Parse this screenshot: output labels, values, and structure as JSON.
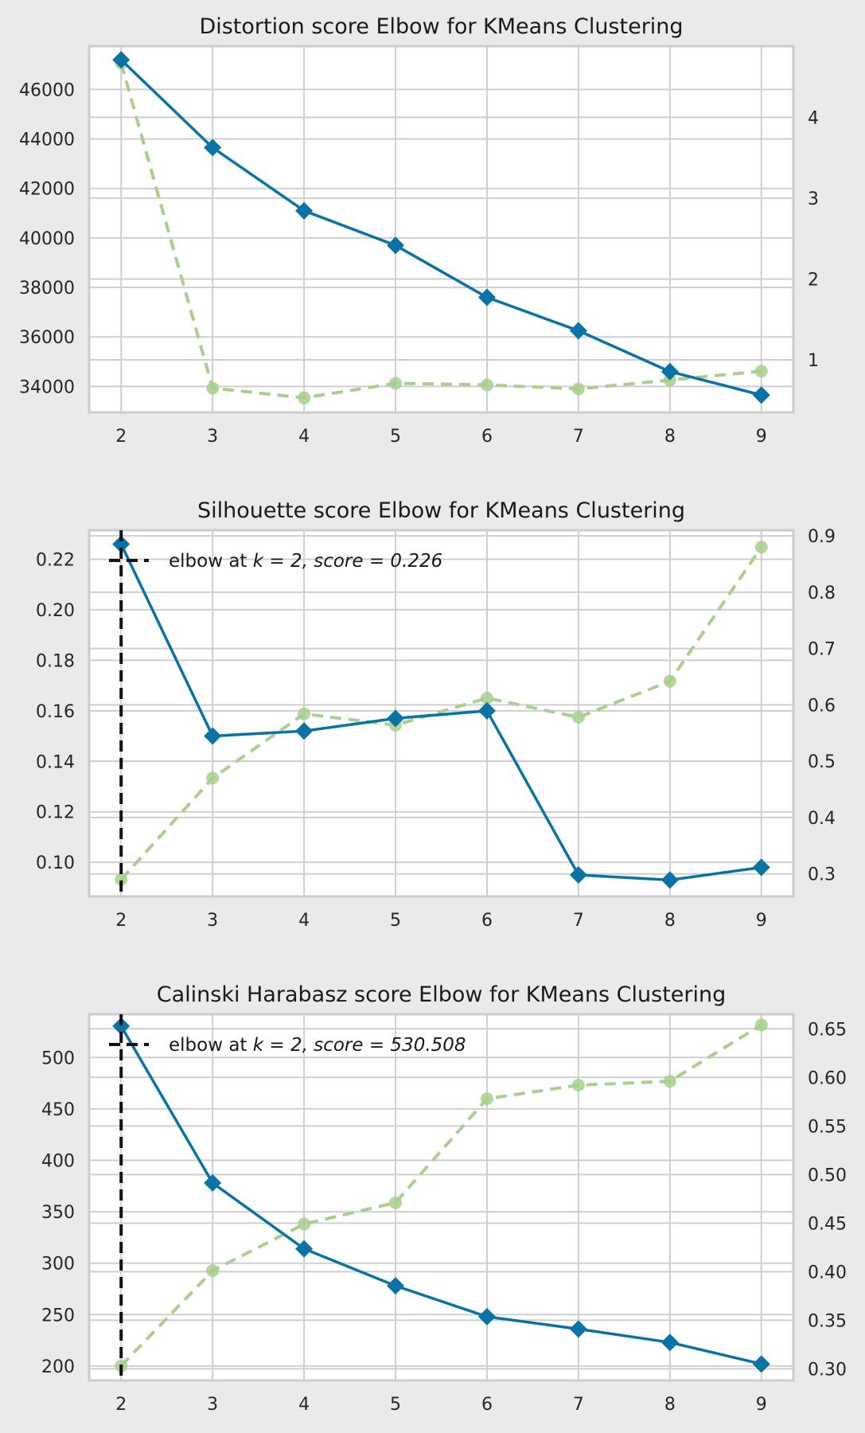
{
  "chart_data": [
    {
      "type": "line",
      "title": "Distortion score Elbow for KMeans Clustering",
      "x": [
        2,
        3,
        4,
        5,
        6,
        7,
        8,
        9
      ],
      "xlim": [
        1.65,
        9.35
      ],
      "ylim": [
        32950,
        47750
      ],
      "y2lim": [
        0.35,
        4.88
      ],
      "yticks": [
        34000,
        36000,
        38000,
        40000,
        42000,
        44000,
        46000
      ],
      "y2ticks": [
        1,
        2,
        3,
        4
      ],
      "y2tick_format": "int",
      "series": [
        {
          "axis": "left",
          "values": [
            47200,
            43650,
            41100,
            39700,
            37600,
            36250,
            34600,
            33650
          ]
        },
        {
          "axis": "right",
          "values": [
            4.67,
            0.65,
            0.53,
            0.71,
            0.69,
            0.64,
            0.75,
            0.86
          ]
        }
      ],
      "elbow": null,
      "grid": true
    },
    {
      "type": "line",
      "title": "Silhouette score Elbow for KMeans Clustering",
      "x": [
        2,
        3,
        4,
        5,
        6,
        7,
        8,
        9
      ],
      "xlim": [
        1.65,
        9.35
      ],
      "ylim": [
        0.0865,
        0.2315
      ],
      "y2lim": [
        0.26,
        0.91
      ],
      "yticks": [
        0.1,
        0.12,
        0.14,
        0.16,
        0.18,
        0.2,
        0.22
      ],
      "y2ticks": [
        0.3,
        0.4,
        0.5,
        0.6,
        0.7,
        0.8,
        0.9
      ],
      "y2tick_format": "1",
      "series": [
        {
          "axis": "left",
          "values": [
            0.226,
            0.15,
            0.152,
            0.157,
            0.16,
            0.095,
            0.093,
            0.098
          ]
        },
        {
          "axis": "right",
          "values": [
            0.29,
            0.47,
            0.584,
            0.564,
            0.612,
            0.578,
            0.642,
            0.88
          ]
        }
      ],
      "elbow": {
        "k": 2,
        "label_prefix": "elbow at ",
        "label_math": "k = 2, score = 0.226"
      },
      "grid": true
    },
    {
      "type": "line",
      "title": "Calinski Harabasz score Elbow for KMeans Clustering",
      "x": [
        2,
        3,
        4,
        5,
        6,
        7,
        8,
        9
      ],
      "xlim": [
        1.65,
        9.35
      ],
      "ylim": [
        186,
        542
      ],
      "y2lim": [
        0.288,
        0.665
      ],
      "yticks": [
        200,
        250,
        300,
        350,
        400,
        450,
        500
      ],
      "y2ticks": [
        0.3,
        0.35,
        0.4,
        0.45,
        0.5,
        0.55,
        0.6,
        0.65
      ],
      "y2tick_format": "2",
      "series": [
        {
          "axis": "left",
          "values": [
            530.508,
            378,
            314,
            278,
            248,
            236,
            223,
            202
          ]
        },
        {
          "axis": "right",
          "values": [
            0.303,
            0.401,
            0.449,
            0.471,
            0.578,
            0.592,
            0.596,
            0.654
          ]
        }
      ],
      "elbow": {
        "k": 2,
        "label_prefix": "elbow at ",
        "label_math": "k = 2, score = 530.508"
      },
      "grid": true
    }
  ],
  "colors": {
    "primary": "#0873a4",
    "secondary": "#a8cf8e",
    "elbow": "#111111",
    "grid": "#cfcfcf",
    "spine": "#cccccc",
    "figure_bg": "#eaeaea",
    "axes_bg": "#ffffff"
  }
}
